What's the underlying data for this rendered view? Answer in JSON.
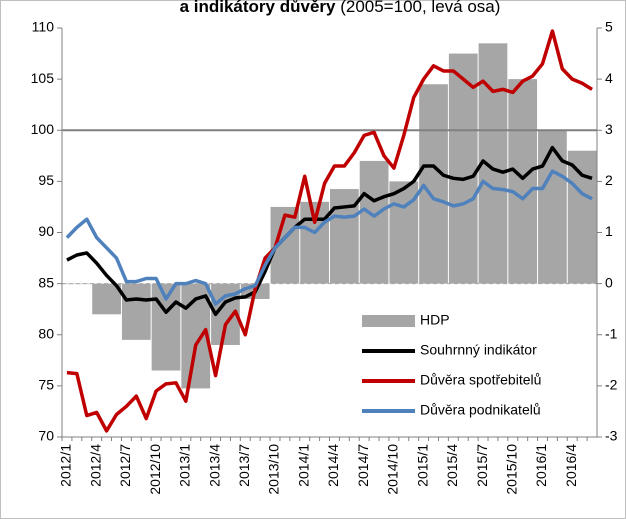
{
  "chart_data": {
    "type": "bar-line",
    "title_bold": "a indikátory důvěry",
    "title_rest": "(2005=100, levá osa)",
    "categories": [
      "2012/1",
      null,
      null,
      "2012/4",
      null,
      null,
      "2012/7",
      null,
      null,
      "2012/10",
      null,
      null,
      "2013/1",
      null,
      null,
      "2013/4",
      null,
      null,
      "2013/7",
      null,
      null,
      "2013/10",
      null,
      null,
      "2014/1",
      null,
      null,
      "2014/4",
      null,
      null,
      "2014/7",
      null,
      null,
      "2014/10",
      null,
      null,
      "2015/1",
      null,
      null,
      "2015/4",
      null,
      null,
      "2015/7",
      null,
      null,
      "2015/10",
      null,
      null,
      "2016/1",
      null,
      null,
      "2016/4",
      null,
      null
    ],
    "ylim": [
      70,
      110
    ],
    "yticks": [
      70,
      75,
      80,
      85,
      90,
      95,
      100,
      105,
      110
    ],
    "y2lim": [
      -3,
      5
    ],
    "y2ticks": [
      -3,
      -2,
      -1,
      0,
      1,
      2,
      3,
      4,
      5
    ],
    "hline": 100,
    "legend": "lower right",
    "series": [
      {
        "name": "HDP",
        "type": "bar",
        "axis": "y2",
        "color": "#a6a6a6",
        "values": [
          null,
          0,
          null,
          null,
          -0.6,
          null,
          null,
          -1.1,
          null,
          null,
          -1.7,
          null,
          null,
          -2.05,
          null,
          null,
          -1.2,
          null,
          null,
          -0.3,
          null,
          null,
          1.5,
          null,
          null,
          1.6,
          null,
          null,
          1.85,
          null,
          null,
          2.4,
          null,
          null,
          2.0,
          null,
          null,
          3.9,
          null,
          null,
          4.5,
          null,
          null,
          4.7,
          null,
          null,
          4.0,
          null,
          null,
          3.0,
          null,
          null,
          2.6,
          null
        ]
      },
      {
        "name": "Souhrnný indikátor",
        "type": "line",
        "color": "#000000",
        "values": [
          87.3,
          87.8,
          88.0,
          87.0,
          85.8,
          84.8,
          83.4,
          83.5,
          83.4,
          83.5,
          82.2,
          83.2,
          82.6,
          83.5,
          83.8,
          82.0,
          83.2,
          83.6,
          83.7,
          84.2,
          86.2,
          88.5,
          89.5,
          90.5,
          91.3,
          91.3,
          91.3,
          92.4,
          92.5,
          92.6,
          93.8,
          93.1,
          93.5,
          93.8,
          94.3,
          95.0,
          96.5,
          96.5,
          95.6,
          95.3,
          95.2,
          95.5,
          97.0,
          96.2,
          95.9,
          96.2,
          95.3,
          96.2,
          96.5,
          98.3,
          97.0,
          96.6,
          95.6,
          95.3
        ]
      },
      {
        "name": "Důvěra spotřebitelů",
        "type": "line",
        "color": "#c00000",
        "values": [
          76.3,
          76.2,
          72.1,
          72.4,
          70.6,
          72.2,
          73.0,
          74.0,
          71.8,
          74.5,
          75.2,
          75.3,
          73.5,
          79.0,
          80.5,
          76.0,
          81.0,
          82.3,
          80.0,
          84.5,
          87.5,
          88.5,
          91.7,
          91.5,
          95.5,
          91.0,
          94.8,
          96.5,
          96.5,
          97.8,
          99.5,
          99.8,
          97.5,
          96.3,
          99.5,
          103.2,
          105.0,
          106.3,
          105.8,
          105.8,
          105.0,
          104.2,
          104.8,
          103.8,
          104.0,
          103.7,
          104.8,
          105.3,
          106.5,
          109.7,
          106.0,
          105.0,
          104.6,
          104.0
        ]
      },
      {
        "name": "Důvěra podnikatelů",
        "type": "line",
        "color": "#4f81bd",
        "values": [
          89.5,
          90.5,
          91.3,
          89.5,
          88.5,
          87.5,
          85.2,
          85.2,
          85.5,
          85.5,
          83.5,
          85.0,
          85.0,
          85.3,
          85.0,
          83.0,
          83.8,
          84.0,
          84.5,
          84.8,
          86.8,
          88.5,
          89.5,
          90.5,
          90.5,
          90.0,
          91.0,
          91.6,
          91.5,
          91.6,
          92.3,
          91.6,
          92.3,
          92.8,
          92.5,
          93.2,
          94.6,
          93.3,
          93.0,
          92.6,
          92.8,
          93.3,
          95.0,
          94.3,
          94.2,
          94.0,
          93.3,
          94.3,
          94.3,
          96.0,
          95.5,
          94.8,
          93.8,
          93.3
        ]
      }
    ]
  }
}
